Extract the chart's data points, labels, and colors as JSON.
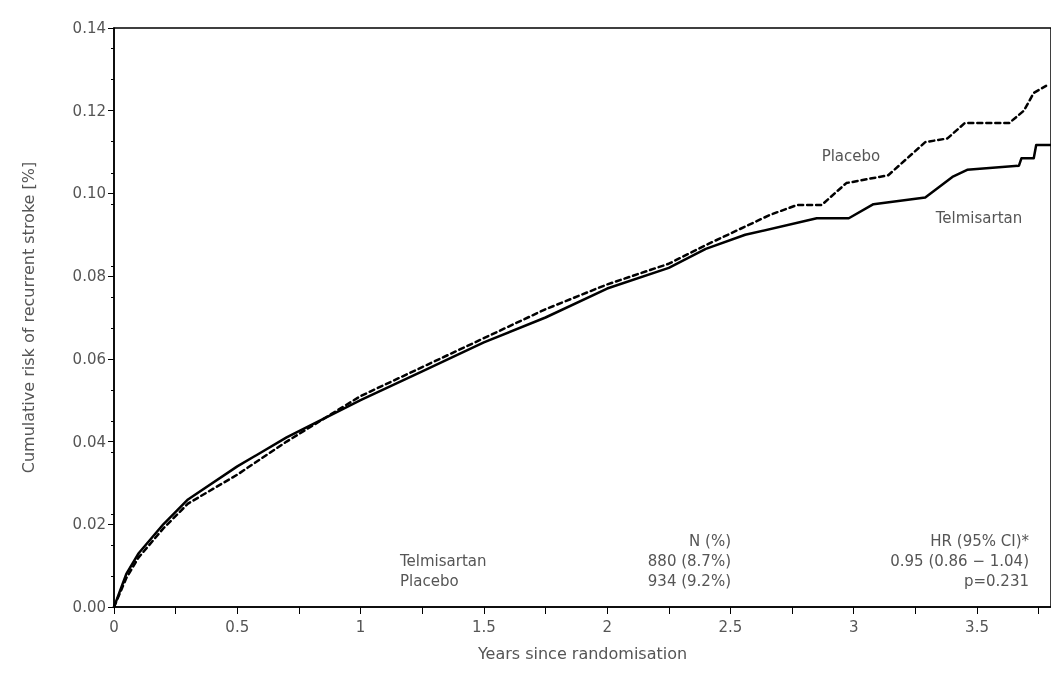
{
  "chart_data": {
    "type": "line",
    "xlabel": "Years since randomisation",
    "ylabel": "Cumulative risk of recurrent stroke [%]",
    "xlim": [
      0,
      3.8
    ],
    "ylim": [
      0,
      0.14
    ],
    "xticks": [
      0,
      {
        "value": 0.25,
        "label": null
      },
      0.5,
      {
        "value": 0.75,
        "label": null
      },
      1,
      {
        "value": 1.25,
        "label": null
      },
      1.5,
      {
        "value": 1.75,
        "label": null
      },
      2,
      {
        "value": 2.25,
        "label": null
      },
      2.5,
      {
        "value": 2.75,
        "label": null
      },
      3,
      {
        "value": 3.25,
        "label": null
      },
      3.5,
      {
        "value": 3.75,
        "label": null
      }
    ],
    "yticks": [
      {
        "value": 0,
        "label": "0.00"
      },
      {
        "value": 0.02,
        "label": "0.02"
      },
      {
        "value": 0.04,
        "label": "0.04"
      },
      {
        "value": 0.06,
        "label": "0.06"
      },
      {
        "value": 0.08,
        "label": "0.08"
      },
      {
        "value": 0.1,
        "label": "0.10"
      },
      {
        "value": 0.12,
        "label": "0.12"
      },
      {
        "value": 0.14,
        "label": "0.14"
      }
    ],
    "grid": false,
    "legend": false,
    "marker": "none",
    "series": [
      {
        "name": "Placebo",
        "color": "#000000",
        "line_style": "dashed",
        "x": [
          0,
          0.05,
          0.1,
          0.2,
          0.3,
          0.5,
          0.7,
          1.0,
          1.25,
          1.5,
          1.75,
          2.0,
          2.25,
          2.4,
          2.66,
          2.77,
          2.87,
          2.97,
          3.14,
          3.29,
          3.38,
          3.45,
          3.63,
          3.69,
          3.73,
          3.78
        ],
        "values": [
          0,
          0.007,
          0.012,
          0.019,
          0.025,
          0.032,
          0.04,
          0.051,
          0.058,
          0.065,
          0.072,
          0.078,
          0.083,
          0.0875,
          0.0948,
          0.0972,
          0.0972,
          0.1025,
          0.1044,
          0.1124,
          0.1133,
          0.117,
          0.117,
          0.12,
          0.1243,
          0.126
        ]
      },
      {
        "name": "Telmisartan",
        "color": "#000000",
        "line_style": "solid",
        "x": [
          0,
          0.05,
          0.1,
          0.2,
          0.3,
          0.5,
          0.7,
          1.0,
          1.25,
          1.5,
          1.75,
          2.0,
          2.25,
          2.4,
          2.56,
          2.85,
          2.98,
          3.08,
          3.29,
          3.4,
          3.46,
          3.67,
          3.68,
          3.73,
          3.74,
          3.8
        ],
        "values": [
          0,
          0.008,
          0.013,
          0.02,
          0.026,
          0.034,
          0.041,
          0.05,
          0.057,
          0.064,
          0.07,
          0.077,
          0.082,
          0.0866,
          0.09,
          0.094,
          0.094,
          0.0974,
          0.099,
          0.104,
          0.1057,
          0.1067,
          0.1085,
          0.1085,
          0.1117,
          0.1117
        ]
      }
    ],
    "annotations": [
      "N (%)",
      "HR (95% CI)*",
      "Telmisartan",
      "880 (8.7%)",
      "0.95 (0.86 − 1.04)",
      "Placebo",
      "934 (9.2%)",
      "p=0.231"
    ]
  }
}
